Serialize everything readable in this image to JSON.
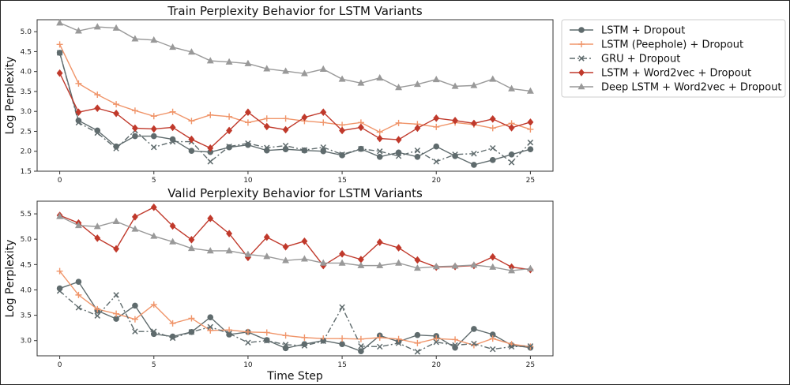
{
  "colors": {
    "lstm": "#5f6b6d",
    "peephole": "#f0956a",
    "gru": "#5f6b6d",
    "w2v": "#c0392b",
    "deep": "#999999"
  },
  "legend": [
    {
      "label": "LSTM + Dropout",
      "marker": "circle",
      "color": "#5f6b6d",
      "dash": "solid"
    },
    {
      "label": "LSTM (Peephole) + Dropout",
      "marker": "plus",
      "color": "#f0956a",
      "dash": "solid"
    },
    {
      "label": "GRU + Dropout",
      "marker": "x",
      "color": "#5f6b6d",
      "dash": "dashdot"
    },
    {
      "label": "LSTM + Word2vec + Dropout",
      "marker": "diamond",
      "color": "#c0392b",
      "dash": "solid"
    },
    {
      "label": "Deep LSTM + Word2vec + Dropout",
      "marker": "triangle",
      "color": "#999999",
      "dash": "solid"
    }
  ],
  "chart_data": [
    {
      "type": "line",
      "title": "Train Perplexity Behavior for LSTM Variants",
      "xlabel": "",
      "ylabel": "Log Perplexity",
      "xlim": [
        -1.2,
        26.2
      ],
      "ylim": [
        1.5,
        5.3
      ],
      "xticks": [
        0,
        5,
        10,
        15,
        20,
        25
      ],
      "yticks": [
        1.5,
        2.0,
        2.5,
        3.0,
        3.5,
        4.0,
        4.5,
        5.0
      ],
      "ytick_labels": [
        "1.5",
        "2.0",
        "2.5",
        "3.0",
        "3.5",
        "4.0",
        "4.5",
        "5.0"
      ],
      "grid": false,
      "legend_position": "outside-right",
      "x": [
        0,
        1,
        2,
        3,
        4,
        5,
        6,
        7,
        8,
        9,
        10,
        11,
        12,
        13,
        14,
        15,
        16,
        17,
        18,
        19,
        20,
        21,
        22,
        23,
        24,
        25
      ],
      "series": [
        {
          "name": "LSTM + Dropout",
          "marker": "circle",
          "color": "#5f6b6d",
          "dash": "solid",
          "values": [
            4.47,
            2.77,
            2.52,
            2.12,
            2.38,
            2.38,
            2.3,
            2.01,
            1.98,
            2.1,
            2.16,
            2.02,
            2.05,
            2.02,
            2.0,
            1.9,
            2.06,
            1.86,
            1.97,
            1.86,
            2.12,
            1.88,
            1.66,
            1.78,
            1.92,
            2.05
          ]
        },
        {
          "name": "LSTM (Peephole) + Dropout",
          "marker": "plus",
          "color": "#f0956a",
          "dash": "solid",
          "values": [
            4.68,
            3.7,
            3.42,
            3.18,
            3.02,
            2.88,
            2.99,
            2.76,
            2.91,
            2.87,
            2.72,
            2.82,
            2.82,
            2.76,
            2.72,
            2.66,
            2.72,
            2.48,
            2.71,
            2.68,
            2.61,
            2.72,
            2.67,
            2.58,
            2.7,
            2.55
          ]
        },
        {
          "name": "GRU + Dropout",
          "marker": "x",
          "color": "#5f6b6d",
          "dash": "dashdot",
          "values": [
            4.47,
            2.72,
            2.46,
            2.07,
            2.52,
            2.1,
            2.24,
            2.24,
            1.74,
            2.12,
            2.2,
            2.09,
            2.14,
            2.03,
            2.1,
            1.92,
            2.06,
            2.0,
            1.88,
            2.02,
            1.74,
            1.92,
            1.94,
            2.08,
            1.72,
            2.22
          ]
        },
        {
          "name": "LSTM + Word2vec + Dropout",
          "marker": "diamond",
          "color": "#c0392b",
          "dash": "solid",
          "values": [
            3.96,
            2.98,
            3.08,
            2.95,
            2.58,
            2.56,
            2.6,
            2.3,
            2.08,
            2.52,
            2.98,
            2.62,
            2.54,
            2.85,
            2.98,
            2.52,
            2.6,
            2.32,
            2.29,
            2.58,
            2.83,
            2.77,
            2.7,
            2.81,
            2.59,
            2.73
          ]
        },
        {
          "name": "Deep LSTM + Word2vec + Dropout",
          "marker": "triangle",
          "color": "#999999",
          "dash": "solid",
          "values": [
            5.22,
            5.02,
            5.12,
            5.09,
            4.82,
            4.79,
            4.61,
            4.49,
            4.27,
            4.24,
            4.2,
            4.07,
            4.01,
            3.95,
            4.06,
            3.81,
            3.71,
            3.84,
            3.6,
            3.68,
            3.8,
            3.63,
            3.65,
            3.81,
            3.57,
            3.51
          ]
        }
      ]
    },
    {
      "type": "line",
      "title": "Valid Perplexity Behavior for LSTM Variants",
      "xlabel": "Time Step",
      "ylabel": "Log Perplexity",
      "xlim": [
        -1.2,
        26.2
      ],
      "ylim": [
        2.7,
        5.75
      ],
      "xticks": [
        0,
        5,
        10,
        15,
        20,
        25
      ],
      "yticks": [
        3.0,
        3.5,
        4.0,
        4.5,
        5.0,
        5.5
      ],
      "ytick_labels": [
        "3.0",
        "3.5",
        "4.0",
        "4.5",
        "5.0",
        "5.5"
      ],
      "grid": false,
      "x": [
        0,
        1,
        2,
        3,
        4,
        5,
        6,
        7,
        8,
        9,
        10,
        11,
        12,
        13,
        14,
        15,
        16,
        17,
        18,
        19,
        20,
        21,
        22,
        23,
        24,
        25
      ],
      "series": [
        {
          "name": "LSTM + Dropout",
          "marker": "circle",
          "color": "#5f6b6d",
          "dash": "solid",
          "values": [
            4.03,
            4.16,
            3.59,
            3.43,
            3.69,
            3.13,
            3.08,
            3.17,
            3.46,
            3.12,
            3.17,
            3.01,
            2.85,
            2.93,
            3.0,
            2.93,
            2.79,
            3.1,
            2.98,
            3.11,
            3.09,
            2.86,
            3.23,
            3.12,
            2.91,
            2.86
          ]
        },
        {
          "name": "LSTM (Peephole) + Dropout",
          "marker": "plus",
          "color": "#f0956a",
          "dash": "solid",
          "values": [
            4.37,
            3.9,
            3.62,
            3.53,
            3.42,
            3.71,
            3.34,
            3.44,
            3.2,
            3.21,
            3.17,
            3.16,
            3.1,
            3.06,
            3.04,
            3.04,
            3.03,
            3.06,
            3.03,
            2.95,
            3.04,
            3.02,
            2.91,
            3.04,
            2.93,
            2.88
          ]
        },
        {
          "name": "GRU + Dropout",
          "marker": "x",
          "color": "#5f6b6d",
          "dash": "dashdot",
          "values": [
            3.98,
            3.65,
            3.49,
            3.9,
            3.18,
            3.18,
            3.05,
            3.17,
            3.27,
            3.14,
            2.96,
            3.0,
            2.92,
            2.9,
            2.99,
            3.66,
            2.89,
            2.88,
            2.95,
            2.78,
            2.97,
            2.91,
            2.94,
            2.83,
            2.88,
            2.89
          ]
        },
        {
          "name": "LSTM + Word2vec + Dropout",
          "marker": "diamond",
          "color": "#c0392b",
          "dash": "solid",
          "values": [
            5.47,
            5.32,
            5.02,
            4.81,
            5.44,
            5.63,
            5.26,
            4.99,
            5.41,
            5.11,
            4.64,
            5.04,
            4.85,
            4.96,
            4.48,
            4.71,
            4.6,
            4.94,
            4.83,
            4.59,
            4.45,
            4.46,
            4.48,
            4.65,
            4.45,
            4.4
          ]
        },
        {
          "name": "Deep LSTM + Word2vec + Dropout",
          "marker": "triangle",
          "color": "#999999",
          "dash": "solid",
          "values": [
            5.45,
            5.27,
            5.25,
            5.35,
            5.2,
            5.06,
            4.95,
            4.82,
            4.77,
            4.77,
            4.7,
            4.66,
            4.58,
            4.61,
            4.53,
            4.53,
            4.48,
            4.48,
            4.53,
            4.43,
            4.46,
            4.47,
            4.49,
            4.45,
            4.38,
            4.42
          ]
        }
      ]
    }
  ]
}
